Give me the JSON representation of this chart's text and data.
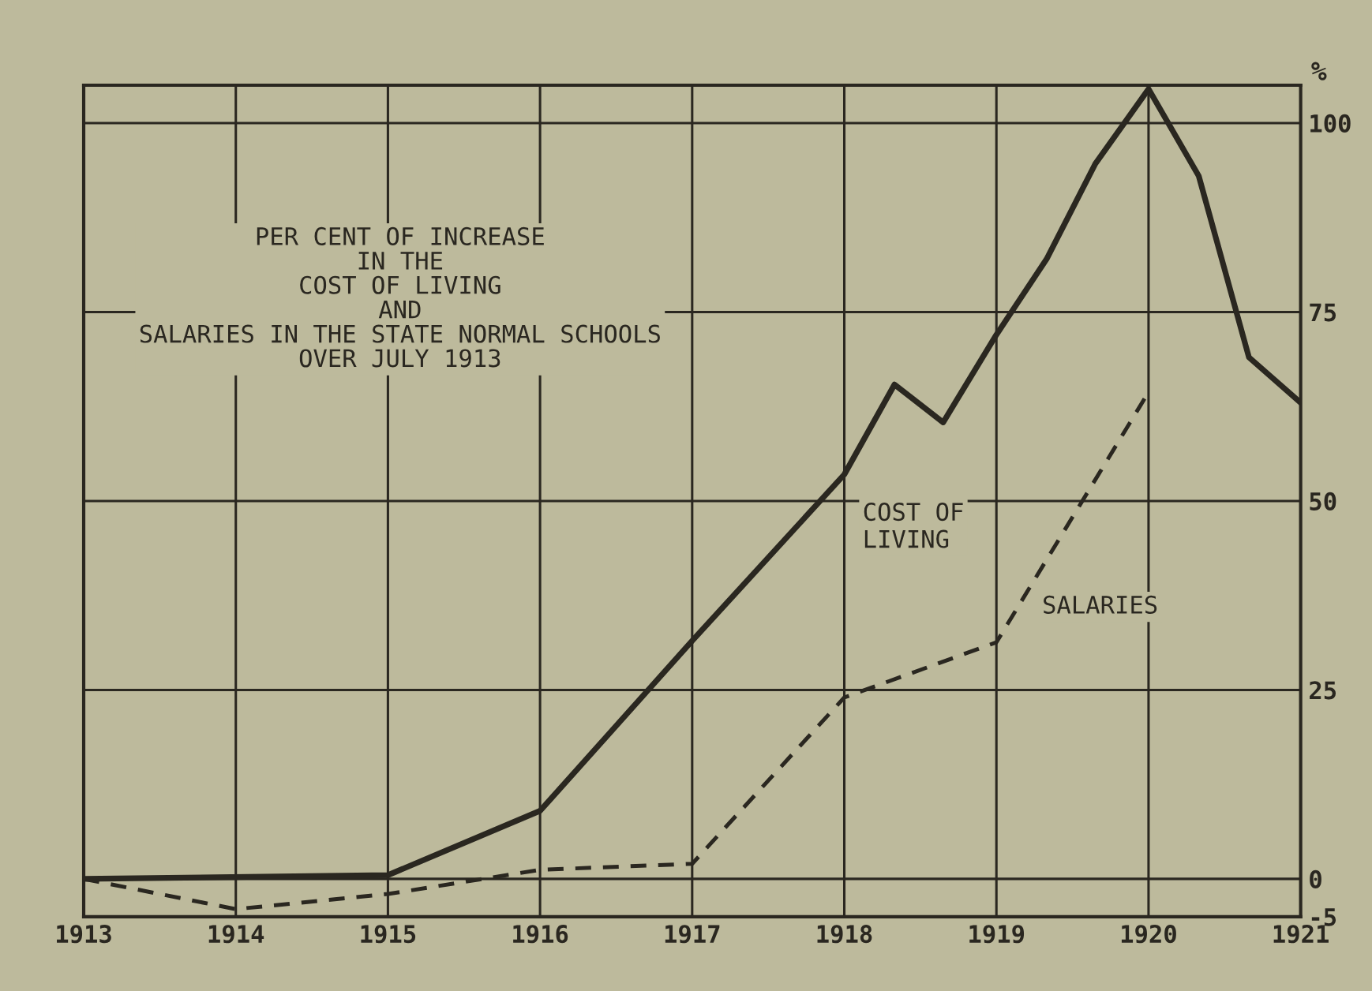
{
  "chart_data": {
    "type": "line",
    "title": "PER CENT OF INCREASE\nIN THE\nCOST OF LIVING\nAND\nSALARIES IN THE STATE NORMAL SCHOOLS\nOVER JULY 1913",
    "ylabel": "%",
    "xlim": [
      1913,
      1921
    ],
    "xticks": [
      1913,
      1914,
      1915,
      1916,
      1917,
      1918,
      1919,
      1920,
      1921
    ],
    "ylim": [
      -5,
      105
    ],
    "yticks": [
      -5,
      0,
      25,
      50,
      75,
      100
    ],
    "grid": true,
    "legend": false,
    "marker": "none",
    "series": [
      {
        "name": "COST OF\nLIVING",
        "color": "#2a2720",
        "line_style": "solid",
        "x": [
          1913,
          1915,
          1916,
          1917,
          1918,
          1918.33,
          1918.65,
          1919,
          1919.33,
          1919.65,
          1920,
          1920.33,
          1920.66,
          1921
        ],
        "values": [
          0,
          0.5,
          9,
          31.5,
          53.5,
          65.4,
          60.4,
          72,
          82,
          94.6,
          104.5,
          93,
          69,
          63
        ]
      },
      {
        "name": "SALARIES",
        "color": "#2a2720",
        "line_style": "dashed",
        "x": [
          1913,
          1914,
          1915,
          1916,
          1917,
          1918,
          1919,
          1920
        ],
        "values": [
          0,
          -4,
          -2,
          1.2,
          2,
          24,
          31.3,
          64.4
        ]
      }
    ]
  }
}
